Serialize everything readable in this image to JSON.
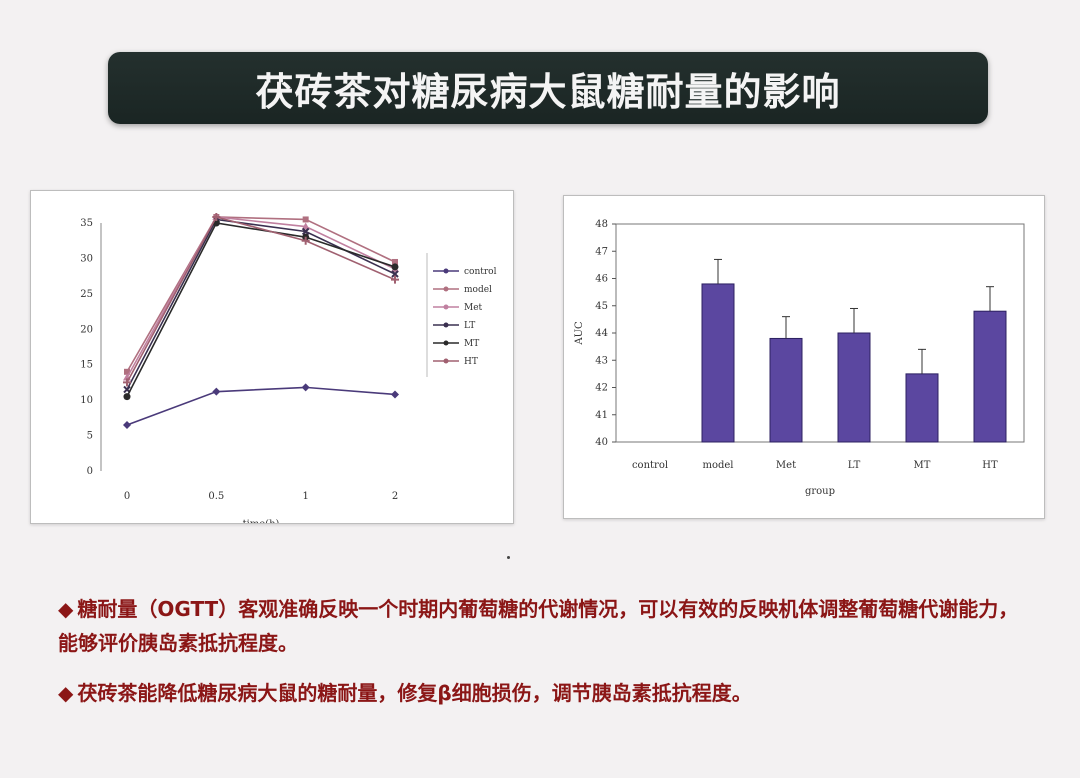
{
  "slide": {
    "title": "茯砖茶对糖尿病大鼠糖耐量的影响",
    "bullet_marker": "◆",
    "bullets": [
      "糖耐量（OGTT）客观准确反映一个时期内葡萄糖的代谢情况，可以有效的反映机体调整葡萄糖代谢能力，能够评价胰岛素抵抗程度。",
      "茯砖茶能降低糖尿病大鼠的糖耐量，修复β细胞损伤，调节胰岛素抵抗程度。"
    ]
  },
  "chart_data": [
    {
      "type": "line",
      "xlabel": "time(h)",
      "ylabel": "",
      "x": [
        "0",
        "0.5",
        "1",
        "2"
      ],
      "ylim": [
        0,
        35
      ],
      "yticks": [
        "0",
        "5",
        "10",
        "15",
        "20",
        "25",
        "30",
        "35"
      ],
      "legend_position": "right",
      "series": [
        {
          "name": "control",
          "color": "#4a3a7a",
          "marker": "diamond",
          "values": [
            6.5,
            11.2,
            11.8,
            10.8
          ]
        },
        {
          "name": "model",
          "color": "#b07080",
          "marker": "square",
          "values": [
            14.0,
            38.5,
            35.5,
            29.5
          ]
        },
        {
          "name": "Met",
          "color": "#c080a0",
          "marker": "triangle",
          "values": [
            13.2,
            36.5,
            34.5,
            28.5
          ]
        },
        {
          "name": "LT",
          "color": "#3a3050",
          "marker": "x",
          "values": [
            11.5,
            35.5,
            33.8,
            27.8
          ]
        },
        {
          "name": "MT",
          "color": "#2a2a2a",
          "marker": "circle",
          "values": [
            10.5,
            35.0,
            33.0,
            28.8
          ]
        },
        {
          "name": "HT",
          "color": "#a06070",
          "marker": "plus",
          "values": [
            12.5,
            36.0,
            32.5,
            27.0
          ]
        }
      ]
    },
    {
      "type": "bar",
      "xlabel": "group",
      "ylabel": "AUC",
      "categories": [
        "control",
        "model",
        "Met",
        "LT",
        "MT",
        "HT"
      ],
      "values": [
        40,
        45.8,
        43.8,
        44.0,
        42.5,
        44.8
      ],
      "errors": [
        0,
        0.9,
        0.8,
        0.9,
        0.9,
        0.9
      ],
      "ylim": [
        40,
        48
      ],
      "yticks": [
        "40",
        "41",
        "42",
        "43",
        "44",
        "45",
        "46",
        "47",
        "48"
      ],
      "bar_color": "#5b47a0"
    }
  ]
}
